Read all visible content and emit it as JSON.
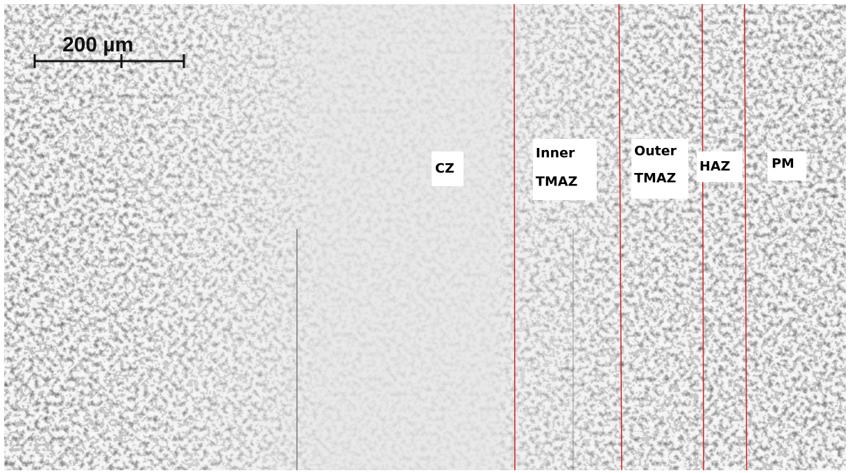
{
  "scale_bar": {
    "label": "200 µm"
  },
  "zones": [
    {
      "lines": [
        "CZ"
      ]
    },
    {
      "lines": [
        "Inner",
        "TMAZ"
      ]
    },
    {
      "lines": [
        "Outer",
        "TMAZ"
      ]
    },
    {
      "lines": [
        "HAZ"
      ]
    },
    {
      "lines": [
        "PM"
      ]
    }
  ]
}
